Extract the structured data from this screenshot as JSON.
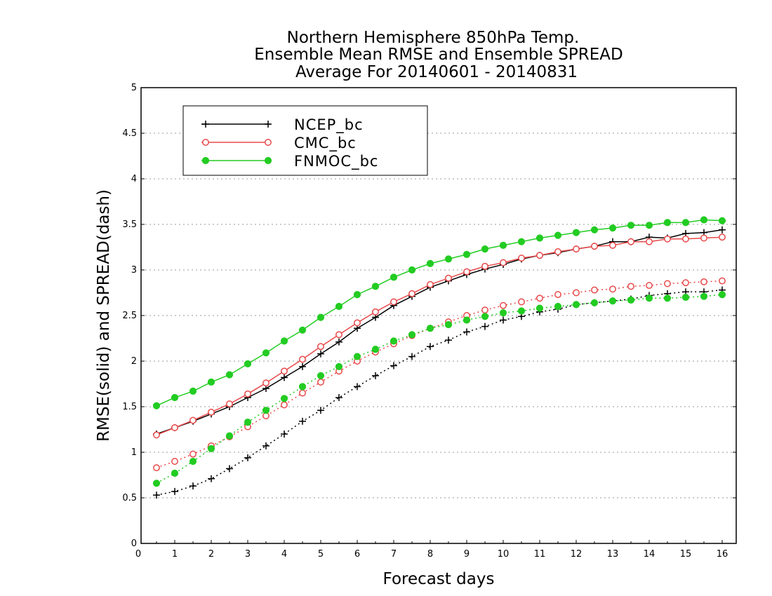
{
  "chart_data": {
    "type": "line",
    "title": [
      "Northern Hemisphere 850hPa Temp.",
      "Ensemble Mean RMSE and Ensemble SPREAD",
      "Average For 20140601 - 20140831"
    ],
    "xlabel": "Forecast days",
    "ylabel": "RMSE(solid) and SPREAD(dash)",
    "xlim": [
      0,
      16.3
    ],
    "ylim": [
      0,
      5
    ],
    "xticks": [
      "0",
      "1",
      "2",
      "3",
      "4",
      "5",
      "6",
      "7",
      "8",
      "9",
      "10",
      "11",
      "12",
      "13",
      "14",
      "15",
      "16"
    ],
    "yticks": [
      "0",
      "0.5",
      "1",
      "1.5",
      "2",
      "2.5",
      "3",
      "3.5",
      "4",
      "4.5",
      "5"
    ],
    "grid": "horizontal dotted",
    "legend_position": "top-left",
    "x": [
      0.5,
      1,
      1.5,
      2,
      2.5,
      3,
      3.5,
      4,
      4.5,
      5,
      5.5,
      6,
      6.5,
      7,
      7.5,
      8,
      8.5,
      9,
      9.5,
      10,
      10.5,
      11,
      11.5,
      12,
      12.5,
      13,
      13.5,
      14,
      14.5,
      15,
      15.5,
      16
    ],
    "series": [
      {
        "name": "NCEP_bc",
        "color": "#000000",
        "marker": "plus",
        "rmse": [
          1.2,
          1.27,
          1.34,
          1.42,
          1.5,
          1.6,
          1.7,
          1.82,
          1.94,
          2.08,
          2.21,
          2.36,
          2.48,
          2.61,
          2.71,
          2.81,
          2.88,
          2.95,
          3.01,
          3.06,
          3.12,
          3.16,
          3.19,
          3.23,
          3.26,
          3.31,
          3.31,
          3.36,
          3.35,
          3.4,
          3.41,
          3.44
        ],
        "spread": [
          0.53,
          0.57,
          0.63,
          0.71,
          0.82,
          0.94,
          1.07,
          1.2,
          1.34,
          1.46,
          1.6,
          1.72,
          1.84,
          1.95,
          2.05,
          2.16,
          2.23,
          2.32,
          2.38,
          2.45,
          2.49,
          2.54,
          2.57,
          2.62,
          2.64,
          2.66,
          2.68,
          2.72,
          2.74,
          2.76,
          2.76,
          2.78
        ]
      },
      {
        "name": "CMC_bc",
        "color": "#e8494a",
        "marker": "open-circle",
        "rmse": [
          1.19,
          1.27,
          1.35,
          1.44,
          1.53,
          1.64,
          1.76,
          1.89,
          2.02,
          2.16,
          2.29,
          2.42,
          2.54,
          2.65,
          2.74,
          2.84,
          2.91,
          2.98,
          3.04,
          3.08,
          3.13,
          3.16,
          3.2,
          3.23,
          3.26,
          3.27,
          3.31,
          3.31,
          3.34,
          3.34,
          3.35,
          3.36
        ],
        "spread": [
          0.83,
          0.9,
          0.98,
          1.07,
          1.17,
          1.28,
          1.4,
          1.52,
          1.65,
          1.77,
          1.89,
          2.0,
          2.1,
          2.19,
          2.28,
          2.36,
          2.43,
          2.5,
          2.56,
          2.61,
          2.65,
          2.69,
          2.73,
          2.75,
          2.78,
          2.79,
          2.82,
          2.83,
          2.85,
          2.86,
          2.87,
          2.88
        ]
      },
      {
        "name": "FNMOC_bc",
        "color": "#22cc22",
        "marker": "filled-circle",
        "rmse": [
          1.51,
          1.6,
          1.67,
          1.77,
          1.85,
          1.97,
          2.09,
          2.22,
          2.34,
          2.48,
          2.6,
          2.73,
          2.82,
          2.92,
          3.0,
          3.07,
          3.12,
          3.17,
          3.23,
          3.27,
          3.31,
          3.35,
          3.38,
          3.41,
          3.44,
          3.46,
          3.49,
          3.49,
          3.52,
          3.52,
          3.55,
          3.54
        ],
        "spread": [
          0.66,
          0.77,
          0.9,
          1.04,
          1.18,
          1.33,
          1.46,
          1.59,
          1.72,
          1.84,
          1.94,
          2.05,
          2.13,
          2.22,
          2.29,
          2.36,
          2.4,
          2.45,
          2.49,
          2.53,
          2.55,
          2.58,
          2.6,
          2.62,
          2.64,
          2.66,
          2.67,
          2.69,
          2.69,
          2.7,
          2.71,
          2.73
        ]
      }
    ]
  }
}
